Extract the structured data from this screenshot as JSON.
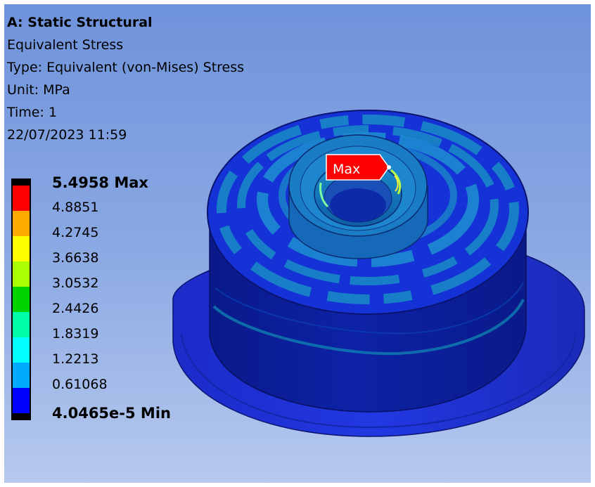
{
  "analysis": {
    "title": "A: Static Structural",
    "result_name": "Equivalent Stress",
    "type": "Type: Equivalent (von-Mises) Stress",
    "unit": "Unit: MPa",
    "time": "Time: 1",
    "timestamp": "22/07/2023 11:59"
  },
  "legend": {
    "max_label": "5.4958 Max",
    "min_label": "4.0465e-5 Min",
    "levels": [
      "4.8851",
      "4.2745",
      "3.6638",
      "3.0532",
      "2.4426",
      "1.8319",
      "1.2213",
      "0.61068"
    ],
    "colors": [
      "#ff0000",
      "#ffaa00",
      "#ffff00",
      "#aaff00",
      "#00d400",
      "#00ffaa",
      "#00ffff",
      "#00aaff",
      "#0000ff"
    ]
  },
  "probe": {
    "label": "Max",
    "color": "#ff0000"
  }
}
